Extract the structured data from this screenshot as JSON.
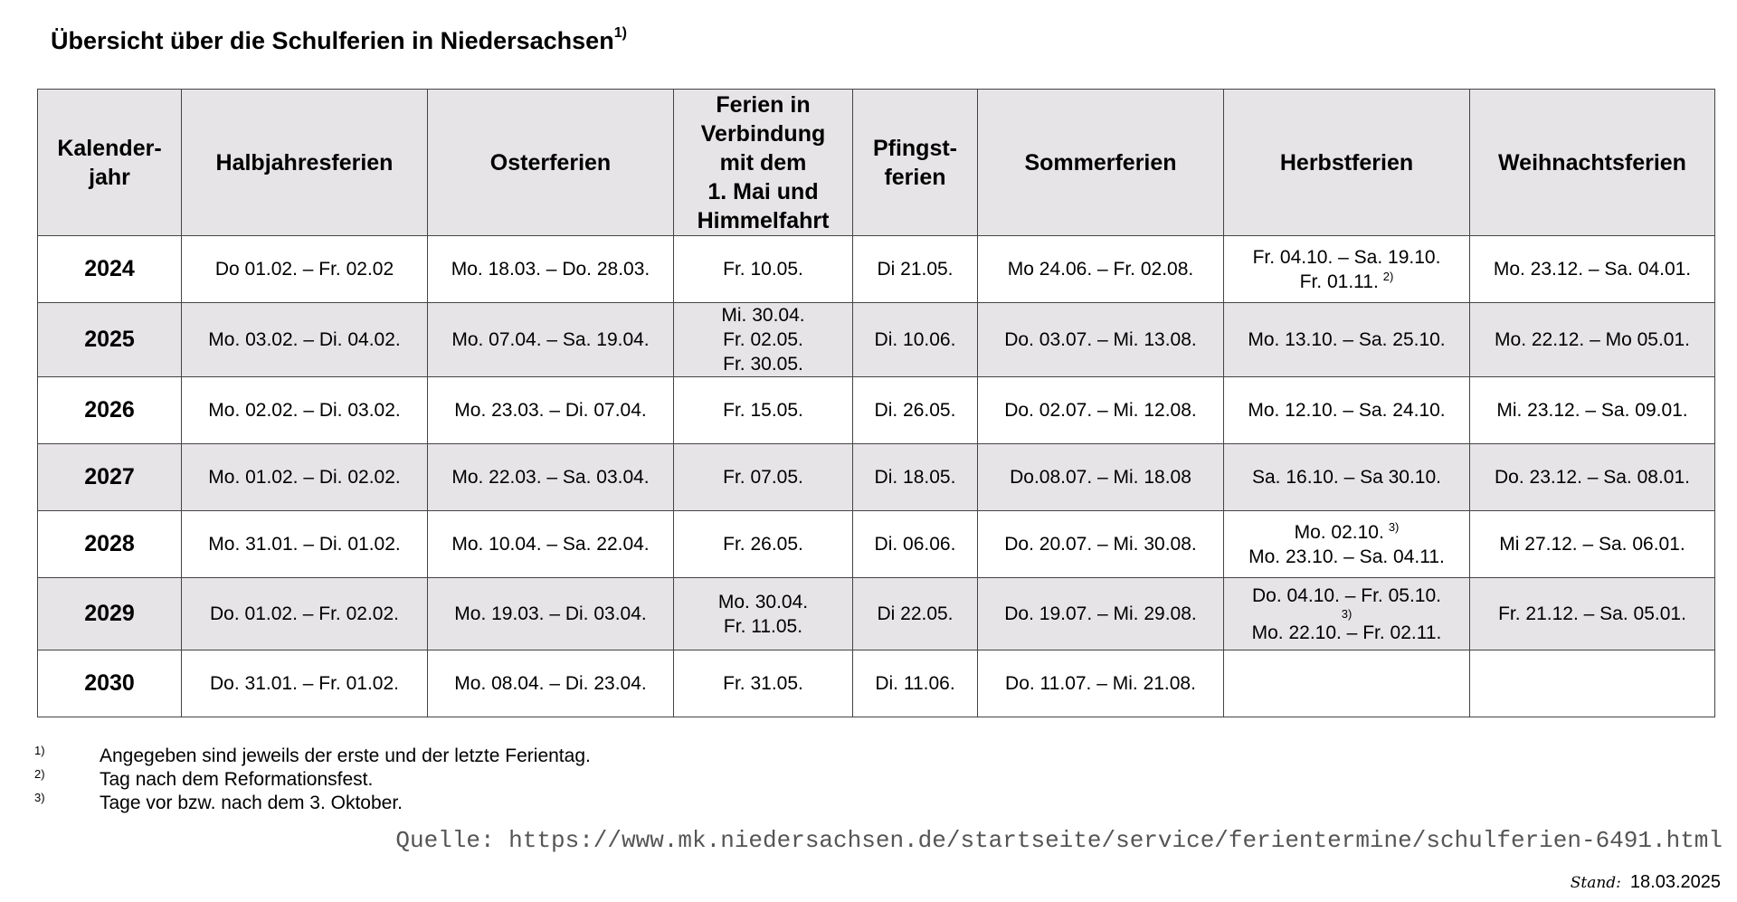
{
  "title": "Übersicht über die Schulferien in Niedersachsen",
  "title_footnote": "1)",
  "headers": {
    "year": [
      "Kalender-",
      "jahr"
    ],
    "halbjahr": [
      "Halbjahresferien"
    ],
    "oster": [
      "Osterferien"
    ],
    "mai": [
      "Ferien in",
      "Verbindung",
      "mit dem",
      "1. Mai und",
      "Himmelfahrt"
    ],
    "pfingst": [
      "Pfingst-",
      "ferien"
    ],
    "sommer": [
      "Sommerferien"
    ],
    "herbst": [
      "Herbstferien"
    ],
    "weihnacht": [
      "Weihnachtsferien"
    ]
  },
  "rows": [
    {
      "year": "2024",
      "halbjahr": "Do 01.02. – Fr. 02.02",
      "oster": "Mo. 18.03. – Do. 28.03.",
      "mai": [
        "Fr. 10.05."
      ],
      "pfingst": "Di 21.05.",
      "sommer": "Mo 24.06. – Fr. 02.08.",
      "herbst_line1": "Fr. 04.10. – Sa. 19.10.",
      "herbst_line2": "Fr. 01.11.",
      "herbst_sup": "2)",
      "weihnacht": "Mo. 23.12. – Sa. 04.01."
    },
    {
      "year": "2025",
      "halbjahr": "Mo. 03.02. – Di. 04.02.",
      "oster": "Mo. 07.04. – Sa. 19.04.",
      "mai": [
        "Mi. 30.04.",
        "Fr. 02.05.",
        "Fr. 30.05."
      ],
      "pfingst": "Di. 10.06.",
      "sommer": "Do. 03.07. – Mi. 13.08.",
      "herbst_line1": "Mo. 13.10. – Sa. 25.10.",
      "weihnacht": "Mo. 22.12. – Mo 05.01."
    },
    {
      "year": "2026",
      "halbjahr": "Mo. 02.02. – Di. 03.02.",
      "oster": "Mo. 23.03. – Di. 07.04.",
      "mai": [
        "Fr. 15.05."
      ],
      "pfingst": "Di. 26.05.",
      "sommer": "Do. 02.07. – Mi. 12.08.",
      "herbst_line1": "Mo. 12.10. – Sa. 24.10.",
      "weihnacht": "Mi. 23.12. – Sa. 09.01."
    },
    {
      "year": "2027",
      "halbjahr": "Mo. 01.02. – Di. 02.02.",
      "oster": "Mo. 22.03. – Sa. 03.04.",
      "mai": [
        "Fr. 07.05."
      ],
      "pfingst": "Di. 18.05.",
      "sommer": "Do.08.07. – Mi. 18.08",
      "herbst_line1": "Sa. 16.10. – Sa 30.10.",
      "weihnacht": "Do. 23.12. – Sa. 08.01."
    },
    {
      "year": "2028",
      "halbjahr": "Mo. 31.01. – Di. 01.02.",
      "oster": "Mo. 10.04. – Sa. 22.04.",
      "mai": [
        "Fr. 26.05."
      ],
      "pfingst": "Di. 06.06.",
      "sommer": "Do. 20.07. – Mi. 30.08.",
      "herbst_line1": "Mo. 02.10.",
      "herbst_sup1": "3)",
      "herbst_line2": "Mo. 23.10. – Sa. 04.11.",
      "weihnacht": "Mi 27.12. – Sa. 06.01."
    },
    {
      "year": "2029",
      "halbjahr": "Do. 01.02. – Fr. 02.02.",
      "oster": "Mo. 19.03. – Di. 03.04.",
      "mai": [
        "Mo. 30.04.",
        "Fr. 11.05."
      ],
      "pfingst": "Di 22.05.",
      "sommer": "Do. 19.07. – Mi. 29.08.",
      "herbst_line1": "Do. 04.10. – Fr. 05.10.",
      "herbst_supline": "3)",
      "herbst_line2": "Mo. 22.10. – Fr. 02.11.",
      "weihnacht": "Fr. 21.12. – Sa. 05.01."
    },
    {
      "year": "2030",
      "halbjahr": "Do. 31.01. – Fr. 01.02.",
      "oster": "Mo. 08.04. – Di. 23.04.",
      "mai": [
        "Fr. 31.05."
      ],
      "pfingst": "Di. 11.06.",
      "sommer": "Do. 11.07. – Mi. 21.08.",
      "herbst_line1": "",
      "weihnacht": ""
    }
  ],
  "footnotes": [
    {
      "mark": "1)",
      "text": "Angegeben sind jeweils der erste und der letzte Ferientag."
    },
    {
      "mark": "2)",
      "text": "Tag nach dem Reformationsfest."
    },
    {
      "mark": "3)",
      "text": "Tage vor bzw. nach dem 3. Oktober."
    }
  ],
  "source": "Quelle: https://www.mk.niedersachsen.de/startseite/service/ferientermine/schulferien-6491.html",
  "stand_label": "Stand:",
  "stand_date": "18.03.2025"
}
